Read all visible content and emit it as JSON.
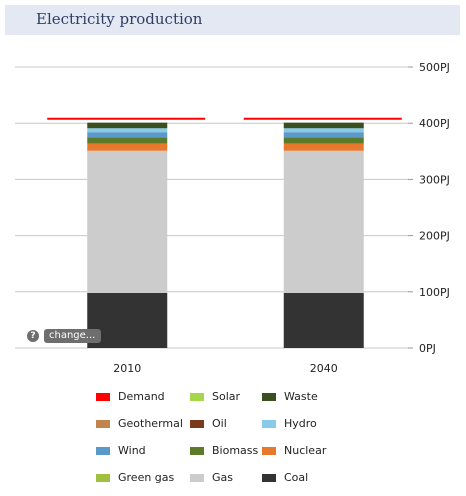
{
  "header": {
    "title": "Electricity production"
  },
  "controls": {
    "help_glyph": "?",
    "change_label": "change..."
  },
  "chart_data": {
    "type": "bar",
    "stacked": true,
    "categories": [
      "2010",
      "2040"
    ],
    "y_ticks": [
      "0PJ",
      "100PJ",
      "200PJ",
      "300PJ",
      "400PJ",
      "500PJ"
    ],
    "ylim": [
      0,
      500
    ],
    "grid": true,
    "legend_position": "bottom",
    "demand": {
      "name": "Demand",
      "values": [
        408,
        408
      ],
      "color": "#ff0000"
    },
    "series": [
      {
        "name": "Coal",
        "color": "#333333",
        "values": [
          98,
          98
        ]
      },
      {
        "name": "Gas",
        "color": "#cccccc",
        "values": [
          253,
          253
        ]
      },
      {
        "name": "Green gas",
        "color": "#a0c040",
        "values": [
          0,
          0
        ]
      },
      {
        "name": "Nuclear",
        "color": "#e8782c",
        "values": [
          13,
          13
        ]
      },
      {
        "name": "Biomass",
        "color": "#5c7a2a",
        "values": [
          11,
          11
        ]
      },
      {
        "name": "Wind",
        "color": "#5b9ac8",
        "values": [
          9,
          9
        ]
      },
      {
        "name": "Hydro",
        "color": "#88cbe8",
        "values": [
          7,
          7
        ]
      },
      {
        "name": "Oil",
        "color": "#7a3a1a",
        "values": [
          0,
          0
        ]
      },
      {
        "name": "Geothermal",
        "color": "#c0844c",
        "values": [
          0,
          0
        ]
      },
      {
        "name": "Solar",
        "color": "#a6d64a",
        "values": [
          0,
          0
        ]
      },
      {
        "name": "Waste",
        "color": "#3a4f20",
        "values": [
          10,
          10
        ]
      }
    ]
  },
  "legend": {
    "items": [
      {
        "label": "Demand",
        "color": "#ff0000"
      },
      {
        "label": "Solar",
        "color": "#a6d64a"
      },
      {
        "label": "Waste",
        "color": "#3a4f20"
      },
      {
        "label": "Geothermal",
        "color": "#c0844c"
      },
      {
        "label": "Oil",
        "color": "#7a3a1a"
      },
      {
        "label": "Hydro",
        "color": "#88cbe8"
      },
      {
        "label": "Wind",
        "color": "#5b9ac8"
      },
      {
        "label": "Biomass",
        "color": "#5c7a2a"
      },
      {
        "label": "Nuclear",
        "color": "#e8782c"
      },
      {
        "label": "Green gas",
        "color": "#a0c040"
      },
      {
        "label": "Gas",
        "color": "#cccccc"
      },
      {
        "label": "Coal",
        "color": "#333333"
      }
    ]
  }
}
